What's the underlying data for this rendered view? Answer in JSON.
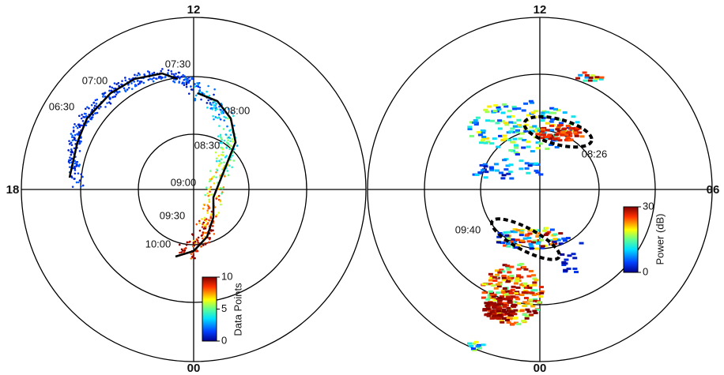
{
  "left_panel": {
    "clock_labels": {
      "top": "12",
      "left": "18",
      "bottom": "00"
    },
    "times": [
      "06:30",
      "07:00",
      "07:30",
      "08:00",
      "08:30",
      "09:00",
      "09:30",
      "10:00"
    ],
    "colorbar": {
      "label": "Data Points",
      "ticks": [
        0,
        5,
        10
      ]
    }
  },
  "right_panel": {
    "clock_labels": {
      "top": "12",
      "right": "06",
      "bottom": "00"
    },
    "times": [
      "08:26",
      "09:40"
    ],
    "colorbar": {
      "label": "Power (dB)",
      "ticks": [
        0,
        30
      ]
    }
  }
}
